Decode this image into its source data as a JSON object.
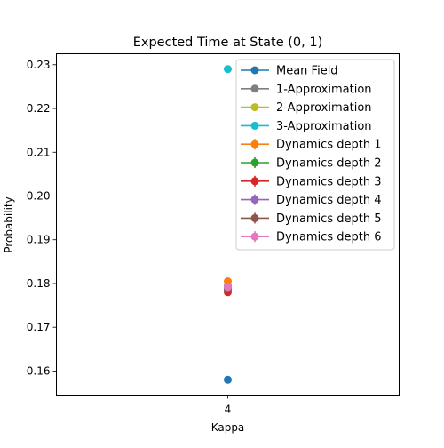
{
  "chart_data": {
    "type": "scatter",
    "title": "Expected Time at State (0, 1)",
    "xlabel": "Kappa",
    "ylabel": "Probability",
    "x_categories": [
      "4"
    ],
    "ylim": [
      0.1545,
      0.2325
    ],
    "yticks": [
      0.16,
      0.17,
      0.18,
      0.19,
      0.2,
      0.21,
      0.22,
      0.23
    ],
    "ytick_labels": [
      "0.16",
      "0.17",
      "0.18",
      "0.19",
      "0.20",
      "0.21",
      "0.22",
      "0.23"
    ],
    "grid": false,
    "legend_position": "top-right",
    "series": [
      {
        "name": "Mean Field",
        "color": "#1f77b4",
        "marker": "circle",
        "error_bar": false,
        "x": [
          "4"
        ],
        "y": [
          0.158
        ]
      },
      {
        "name": "1-Approximation",
        "color": "#7f7f7f",
        "marker": "circle",
        "error_bar": false,
        "x": [
          "4"
        ],
        "y": [
          0.1795
        ]
      },
      {
        "name": "2-Approximation",
        "color": "#bcbd22",
        "marker": "circle",
        "error_bar": false,
        "x": [
          "4"
        ],
        "y": [
          0.179
        ]
      },
      {
        "name": "3-Approximation",
        "color": "#17becf",
        "marker": "circle",
        "error_bar": false,
        "x": [
          "4"
        ],
        "y": [
          0.229
        ]
      },
      {
        "name": "Dynamics depth 1",
        "color": "#ff7f0e",
        "marker": "circle",
        "error_bar": true,
        "x": [
          "4"
        ],
        "y": [
          0.1805
        ]
      },
      {
        "name": "Dynamics depth 2",
        "color": "#2ca02c",
        "marker": "circle",
        "error_bar": true,
        "x": [
          "4"
        ],
        "y": [
          0.1785
        ]
      },
      {
        "name": "Dynamics depth 3",
        "color": "#d62728",
        "marker": "circle",
        "error_bar": true,
        "x": [
          "4"
        ],
        "y": [
          0.178
        ]
      },
      {
        "name": "Dynamics depth 4",
        "color": "#9467bd",
        "marker": "circle",
        "error_bar": true,
        "x": [
          "4"
        ],
        "y": [
          0.1792
        ]
      },
      {
        "name": "Dynamics depth 5",
        "color": "#8c564b",
        "marker": "circle",
        "error_bar": true,
        "x": [
          "4"
        ],
        "y": [
          0.1788
        ]
      },
      {
        "name": "Dynamics depth 6",
        "color": "#e377c2",
        "marker": "circle",
        "error_bar": true,
        "x": [
          "4"
        ],
        "y": [
          0.1792
        ]
      }
    ]
  }
}
